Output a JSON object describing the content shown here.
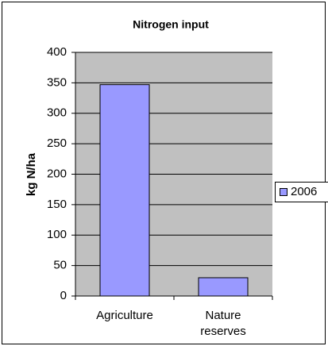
{
  "chart_data": {
    "type": "bar",
    "title": "Nitrogen input",
    "y_label": "kg N/ha",
    "categories": [
      "Agriculture",
      "Nature reserves"
    ],
    "series": [
      {
        "name": "2006",
        "color": "#9999ff",
        "values": [
          347,
          30
        ]
      }
    ],
    "ylim": [
      0,
      400
    ],
    "yticks": [
      0,
      50,
      100,
      150,
      200,
      250,
      300,
      350,
      400
    ],
    "grid": true,
    "legend": "right"
  }
}
